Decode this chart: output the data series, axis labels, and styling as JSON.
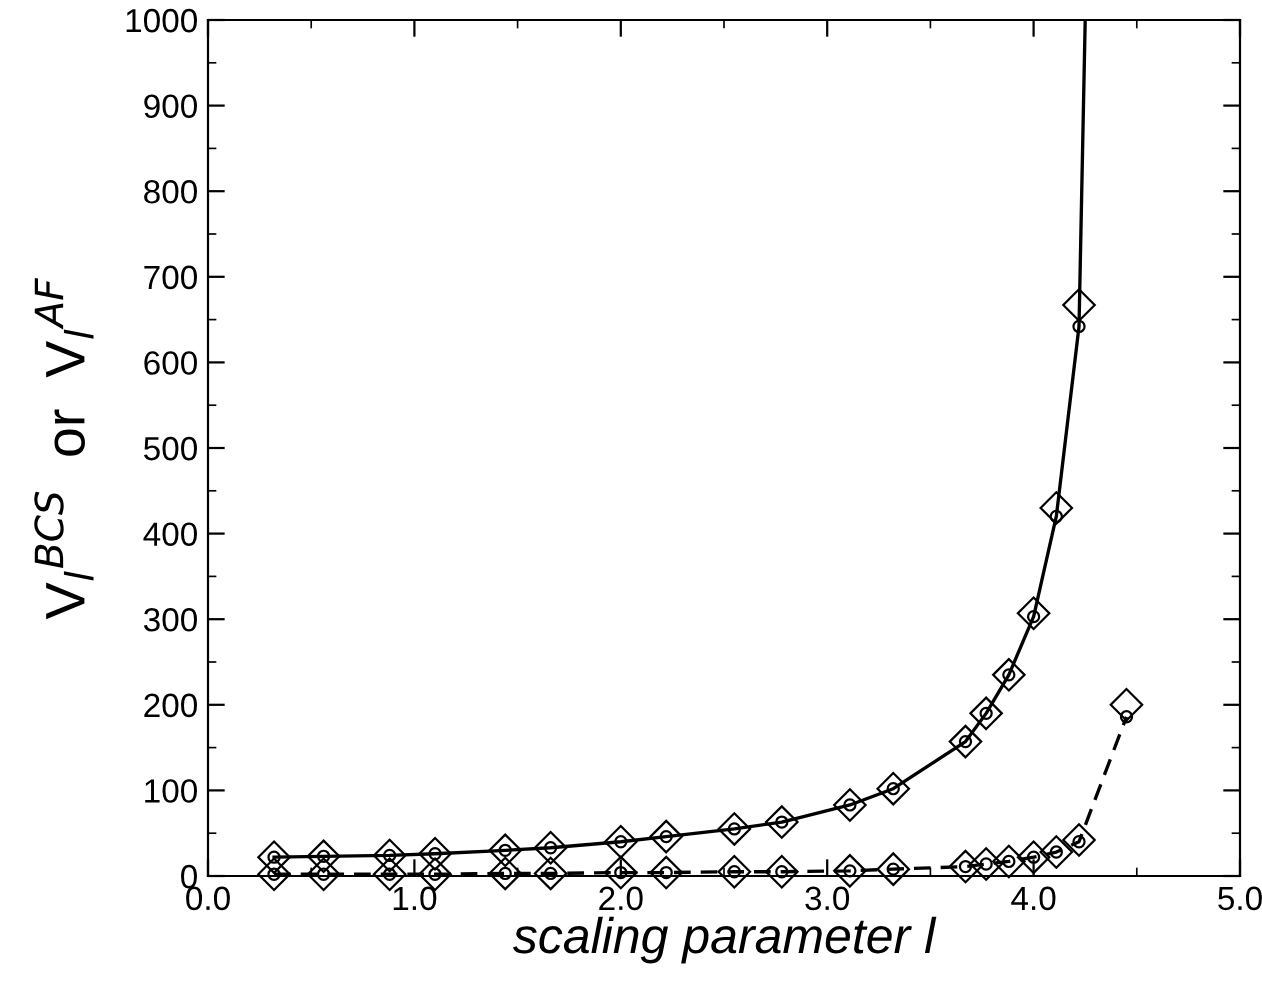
{
  "chart_data": {
    "type": "line",
    "xlabel": "scaling parameter l",
    "ylabel": "V$_{l}$$^{BCS}$  or  V$_{l}$$^{AF}$",
    "xlim": [
      0.0,
      5.0
    ],
    "xticks": [
      {
        "value": 0,
        "label": "0.0"
      },
      {
        "value": 1,
        "label": "1.0"
      },
      {
        "value": 2,
        "label": "2.0"
      },
      {
        "value": 3,
        "label": "3.0"
      },
      {
        "value": 4,
        "label": "4.0"
      },
      {
        "value": 5,
        "label": "5.0"
      }
    ],
    "ylim": [
      0,
      1000
    ],
    "yticks": [
      0,
      100,
      200,
      300,
      400,
      500,
      600,
      700,
      800,
      900,
      1000
    ],
    "grid": false,
    "legend": false,
    "series": [
      {
        "color": "#000000",
        "line_style": "solid",
        "marker": "none",
        "x": [
          0.32,
          0.56,
          0.88,
          1.1,
          1.44,
          1.66,
          2.0,
          2.22,
          2.55,
          2.78,
          3.11,
          3.32,
          3.67,
          3.77,
          3.88,
          4.0,
          4.11,
          4.22,
          4.25
        ],
        "values": [
          22,
          23,
          24,
          26,
          30,
          33,
          40,
          46,
          55,
          63,
          83,
          102,
          157,
          190,
          235,
          303,
          420,
          642,
          1000
        ]
      },
      {
        "type": "scatter",
        "color": "#000000",
        "marker": "circle",
        "x": [
          0.32,
          0.56,
          0.88,
          1.1,
          1.44,
          1.66,
          2.0,
          2.22,
          2.55,
          2.78,
          3.11,
          3.32,
          3.67,
          3.77,
          3.88,
          4.0,
          4.11,
          4.22
        ],
        "values": [
          22,
          23,
          24,
          26,
          30,
          33,
          40,
          46,
          55,
          63,
          83,
          102,
          157,
          190,
          235,
          303,
          420,
          642
        ]
      },
      {
        "type": "scatter",
        "color": "#000000",
        "marker": "diamond",
        "x": [
          0.32,
          0.56,
          0.88,
          1.1,
          1.44,
          1.66,
          2.0,
          2.22,
          2.55,
          2.78,
          3.11,
          3.32,
          3.67,
          3.77,
          3.88,
          4.0,
          4.11,
          4.22
        ],
        "values": [
          22,
          23,
          24,
          26,
          30,
          33,
          40,
          46,
          55,
          63,
          83,
          102,
          157,
          190,
          235,
          307,
          430,
          667
        ]
      },
      {
        "color": "#000000",
        "line_style": "dashed",
        "marker": "none",
        "x": [
          0.32,
          0.56,
          0.88,
          1.1,
          1.44,
          1.66,
          2.0,
          2.22,
          2.55,
          2.78,
          3.11,
          3.32,
          3.67,
          3.77,
          3.88,
          4.0,
          4.11,
          4.22,
          4.45
        ],
        "values": [
          2,
          2,
          2,
          2,
          3,
          3,
          4,
          4,
          5,
          5,
          6,
          8,
          11,
          14,
          17,
          22,
          28,
          40,
          186
        ]
      },
      {
        "type": "scatter",
        "color": "#000000",
        "marker": "circle",
        "x": [
          0.32,
          0.56,
          0.88,
          1.1,
          1.44,
          1.66,
          2.0,
          2.22,
          2.55,
          2.78,
          3.11,
          3.32,
          3.67,
          3.77,
          3.88,
          4.0,
          4.11,
          4.22,
          4.45
        ],
        "values": [
          2,
          2,
          2,
          2,
          3,
          3,
          4,
          4,
          5,
          5,
          6,
          8,
          11,
          14,
          17,
          22,
          28,
          40,
          186
        ]
      },
      {
        "type": "scatter",
        "color": "#000000",
        "marker": "diamond",
        "x": [
          0.32,
          0.56,
          0.88,
          1.1,
          1.44,
          1.66,
          2.0,
          2.22,
          2.55,
          2.78,
          3.11,
          3.32,
          3.67,
          3.77,
          3.88,
          4.0,
          4.11,
          4.22,
          4.45
        ],
        "values": [
          2,
          2,
          2,
          2,
          3,
          3,
          4,
          4,
          5,
          5,
          6,
          8,
          11,
          14,
          17,
          22,
          28,
          42,
          200
        ]
      }
    ]
  }
}
